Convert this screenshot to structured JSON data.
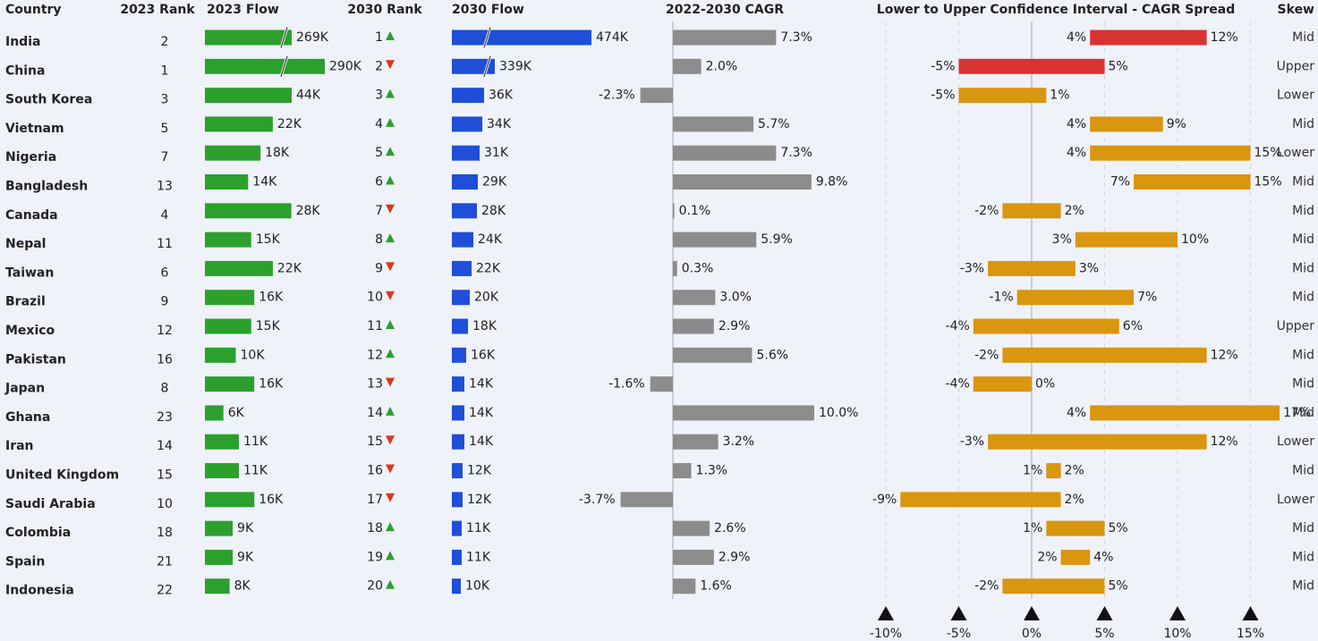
{
  "headers": {
    "country": "Country",
    "rank2023": "2023 Rank",
    "flow2023": "2023 Flow",
    "rank2030": "2030 Rank",
    "flow2030": "2030 Flow",
    "cagr": "2022-2030 CAGR",
    "spread": "Lower to Upper Confidence Interval - CAGR Spread",
    "skew": "Skew"
  },
  "colors": {
    "flow2023": "#2ca02c",
    "flow2030": "#1f4fd8",
    "cagr": "#8c8c8c",
    "spread_upper": "#d93232",
    "spread_default": "#d9960f",
    "rank_up": "#2ca02c",
    "rank_down": "#d9391c"
  },
  "chart_data": {
    "type": "table",
    "axis_ticks": [
      {
        "value": -10,
        "label": "-10%"
      },
      {
        "value": -5,
        "label": "-5%"
      },
      {
        "value": 0,
        "label": "0%"
      },
      {
        "value": 5,
        "label": "5%"
      },
      {
        "value": 10,
        "label": "10%"
      },
      {
        "value": 15,
        "label": "15%"
      }
    ],
    "rows": [
      {
        "country": "India",
        "rank2023": "2",
        "flow2023": 269,
        "flow2023_label": "269K",
        "rank2030": "1",
        "rank_change": "up",
        "flow2030": 474,
        "flow2030_label": "474K",
        "cagr": 7.3,
        "cagr_label": "7.3%",
        "lower": 4,
        "lower_label": "4%",
        "upper": 12,
        "upper_label": "12%",
        "skew": "Mid",
        "broken2023": true,
        "broken2030": true
      },
      {
        "country": "China",
        "rank2023": "1",
        "flow2023": 290,
        "flow2023_label": "290K",
        "rank2030": "2",
        "rank_change": "down",
        "flow2030": 339,
        "flow2030_label": "339K",
        "cagr": 2.0,
        "cagr_label": "2.0%",
        "lower": -5,
        "lower_label": "-5%",
        "upper": 5,
        "upper_label": "5%",
        "skew": "Upper",
        "broken2023": true,
        "broken2030": true
      },
      {
        "country": "South Korea",
        "rank2023": "3",
        "flow2023": 44,
        "flow2023_label": "44K",
        "rank2030": "3",
        "rank_change": "up",
        "flow2030": 36,
        "flow2030_label": "36K",
        "cagr": -2.3,
        "cagr_label": "-2.3%",
        "lower": -5,
        "lower_label": "-5%",
        "upper": 1,
        "upper_label": "1%",
        "skew": "Lower"
      },
      {
        "country": "Vietnam",
        "rank2023": "5",
        "flow2023": 22,
        "flow2023_label": "22K",
        "rank2030": "4",
        "rank_change": "up",
        "flow2030": 34,
        "flow2030_label": "34K",
        "cagr": 5.7,
        "cagr_label": "5.7%",
        "lower": 4,
        "lower_label": "4%",
        "upper": 9,
        "upper_label": "9%",
        "skew": "Mid"
      },
      {
        "country": "Nigeria",
        "rank2023": "7",
        "flow2023": 18,
        "flow2023_label": "18K",
        "rank2030": "5",
        "rank_change": "up",
        "flow2030": 31,
        "flow2030_label": "31K",
        "cagr": 7.3,
        "cagr_label": "7.3%",
        "lower": 4,
        "lower_label": "4%",
        "upper": 15,
        "upper_label": "15%",
        "skew": "Lower"
      },
      {
        "country": "Bangladesh",
        "rank2023": "13",
        "flow2023": 14,
        "flow2023_label": "14K",
        "rank2030": "6",
        "rank_change": "up",
        "flow2030": 29,
        "flow2030_label": "29K",
        "cagr": 9.8,
        "cagr_label": "9.8%",
        "lower": 7,
        "lower_label": "7%",
        "upper": 15,
        "upper_label": "15%",
        "skew": "Mid"
      },
      {
        "country": "Canada",
        "rank2023": "4",
        "flow2023": 28,
        "flow2023_label": "28K",
        "rank2030": "7",
        "rank_change": "down",
        "flow2030": 28,
        "flow2030_label": "28K",
        "cagr": 0.1,
        "cagr_label": "0.1%",
        "lower": -2,
        "lower_label": "-2%",
        "upper": 2,
        "upper_label": "2%",
        "skew": "Mid"
      },
      {
        "country": "Nepal",
        "rank2023": "11",
        "flow2023": 15,
        "flow2023_label": "15K",
        "rank2030": "8",
        "rank_change": "up",
        "flow2030": 24,
        "flow2030_label": "24K",
        "cagr": 5.9,
        "cagr_label": "5.9%",
        "lower": 3,
        "lower_label": "3%",
        "upper": 10,
        "upper_label": "10%",
        "skew": "Mid"
      },
      {
        "country": "Taiwan",
        "rank2023": "6",
        "flow2023": 22,
        "flow2023_label": "22K",
        "rank2030": "9",
        "rank_change": "down",
        "flow2030": 22,
        "flow2030_label": "22K",
        "cagr": 0.3,
        "cagr_label": "0.3%",
        "lower": -3,
        "lower_label": "-3%",
        "upper": 3,
        "upper_label": "3%",
        "skew": "Mid"
      },
      {
        "country": "Brazil",
        "rank2023": "9",
        "flow2023": 16,
        "flow2023_label": "16K",
        "rank2030": "10",
        "rank_change": "down",
        "flow2030": 20,
        "flow2030_label": "20K",
        "cagr": 3.0,
        "cagr_label": "3.0%",
        "lower": -1,
        "lower_label": "-1%",
        "upper": 7,
        "upper_label": "7%",
        "skew": "Mid"
      },
      {
        "country": "Mexico",
        "rank2023": "12",
        "flow2023": 15,
        "flow2023_label": "15K",
        "rank2030": "11",
        "rank_change": "up",
        "flow2030": 18,
        "flow2030_label": "18K",
        "cagr": 2.9,
        "cagr_label": "2.9%",
        "lower": -4,
        "lower_label": "-4%",
        "upper": 6,
        "upper_label": "6%",
        "skew": "Upper"
      },
      {
        "country": "Pakistan",
        "rank2023": "16",
        "flow2023": 10,
        "flow2023_label": "10K",
        "rank2030": "12",
        "rank_change": "up",
        "flow2030": 16,
        "flow2030_label": "16K",
        "cagr": 5.6,
        "cagr_label": "5.6%",
        "lower": -2,
        "lower_label": "-2%",
        "upper": 12,
        "upper_label": "12%",
        "skew": "Mid"
      },
      {
        "country": "Japan",
        "rank2023": "8",
        "flow2023": 16,
        "flow2023_label": "16K",
        "rank2030": "13",
        "rank_change": "down",
        "flow2030": 14,
        "flow2030_label": "14K",
        "cagr": -1.6,
        "cagr_label": "-1.6%",
        "lower": -4,
        "lower_label": "-4%",
        "upper": 0,
        "upper_label": "0%",
        "skew": "Mid"
      },
      {
        "country": "Ghana",
        "rank2023": "23",
        "flow2023": 6,
        "flow2023_label": "6K",
        "rank2030": "14",
        "rank_change": "up",
        "flow2030": 14,
        "flow2030_label": "14K",
        "cagr": 10.0,
        "cagr_label": "10.0%",
        "lower": 4,
        "lower_label": "4%",
        "upper": 17,
        "upper_label": "17%",
        "skew": "Mid"
      },
      {
        "country": "Iran",
        "rank2023": "14",
        "flow2023": 11,
        "flow2023_label": "11K",
        "rank2030": "15",
        "rank_change": "down",
        "flow2030": 14,
        "flow2030_label": "14K",
        "cagr": 3.2,
        "cagr_label": "3.2%",
        "lower": -3,
        "lower_label": "-3%",
        "upper": 12,
        "upper_label": "12%",
        "skew": "Lower"
      },
      {
        "country": "United Kingdom",
        "rank2023": "15",
        "flow2023": 11,
        "flow2023_label": "11K",
        "rank2030": "16",
        "rank_change": "down",
        "flow2030": 12,
        "flow2030_label": "12K",
        "cagr": 1.3,
        "cagr_label": "1.3%",
        "lower": 1,
        "lower_label": "1%",
        "upper": 2,
        "upper_label": "2%",
        "skew": "Mid"
      },
      {
        "country": "Saudi Arabia",
        "rank2023": "10",
        "flow2023": 16,
        "flow2023_label": "16K",
        "rank2030": "17",
        "rank_change": "down",
        "flow2030": 12,
        "flow2030_label": "12K",
        "cagr": -3.7,
        "cagr_label": "-3.7%",
        "lower": -9,
        "lower_label": "-9%",
        "upper": 2,
        "upper_label": "2%",
        "skew": "Lower"
      },
      {
        "country": "Colombia",
        "rank2023": "18",
        "flow2023": 9,
        "flow2023_label": "9K",
        "rank2030": "18",
        "rank_change": "up",
        "flow2030": 11,
        "flow2030_label": "11K",
        "cagr": 2.6,
        "cagr_label": "2.6%",
        "lower": 1,
        "lower_label": "1%",
        "upper": 5,
        "upper_label": "5%",
        "skew": "Mid"
      },
      {
        "country": "Spain",
        "rank2023": "21",
        "flow2023": 9,
        "flow2023_label": "9K",
        "rank2030": "19",
        "rank_change": "up",
        "flow2030": 11,
        "flow2030_label": "11K",
        "cagr": 2.9,
        "cagr_label": "2.9%",
        "lower": 2,
        "lower_label": "2%",
        "upper": 4,
        "upper_label": "4%",
        "skew": "Mid"
      },
      {
        "country": "Indonesia",
        "rank2023": "22",
        "flow2023": 8,
        "flow2023_label": "8K",
        "rank2030": "20",
        "rank_change": "up",
        "flow2030": 10,
        "flow2030_label": "10K",
        "cagr": 1.6,
        "cagr_label": "1.6%",
        "lower": -2,
        "lower_label": "-2%",
        "upper": 5,
        "upper_label": "5%",
        "skew": "Mid"
      }
    ]
  }
}
